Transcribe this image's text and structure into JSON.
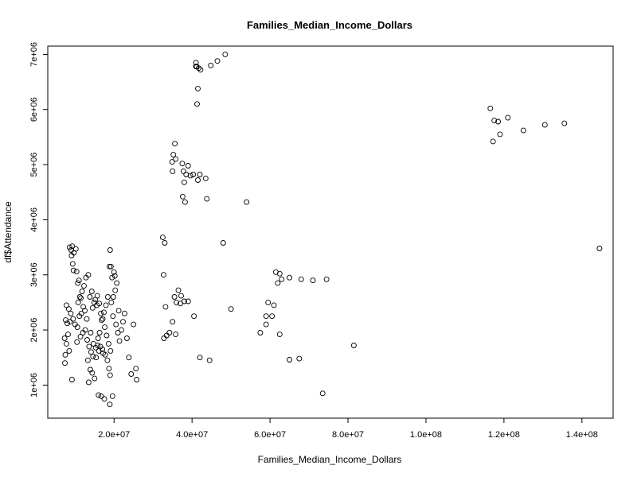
{
  "chart_data": {
    "type": "scatter",
    "title": "Families_Median_Income_Dollars",
    "xlabel": "Families_Median_Income_Dollars",
    "ylabel": "df$Attendance",
    "xlim": [
      3000000,
      148000000
    ],
    "ylim": [
      400000,
      7150000
    ],
    "xticks": [
      20000000,
      40000000,
      60000000,
      80000000,
      100000000,
      120000000,
      140000000
    ],
    "xtick_labels": [
      "2.0e+07",
      "4.0e+07",
      "6.0e+07",
      "8.0e+07",
      "1.0e+08",
      "1.2e+08",
      "1.4e+08"
    ],
    "yticks": [
      1000000,
      2000000,
      3000000,
      4000000,
      5000000,
      6000000,
      7000000
    ],
    "ytick_labels": [
      "1e+06",
      "2e+06",
      "3e+06",
      "4e+06",
      "5e+06",
      "6e+06",
      "7e+06"
    ],
    "grid": false,
    "legend": "none",
    "points": [
      [
        8600000.0,
        3500000.0
      ],
      [
        9000000.0,
        3450000.0
      ],
      [
        9300000.0,
        3520000.0
      ],
      [
        9700000.0,
        3400000.0
      ],
      [
        10200000.0,
        3470000.0
      ],
      [
        9100000.0,
        3350000.0
      ],
      [
        9400000.0,
        3200000.0
      ],
      [
        9600000.0,
        3080000.0
      ],
      [
        10400000.0,
        3060000.0
      ],
      [
        7800000.0,
        2450000.0
      ],
      [
        8400000.0,
        2380000.0
      ],
      [
        8900000.0,
        2300000.0
      ],
      [
        7600000.0,
        2180000.0
      ],
      [
        8000000.0,
        2120000.0
      ],
      [
        8700000.0,
        2150000.0
      ],
      [
        9500000.0,
        2200000.0
      ],
      [
        10000000.0,
        2100000.0
      ],
      [
        10600000.0,
        2050000.0
      ],
      [
        11100000.0,
        2250000.0
      ],
      [
        11600000.0,
        2300000.0
      ],
      [
        12100000.0,
        2420000.0
      ],
      [
        10800000.0,
        2500000.0
      ],
      [
        11200000.0,
        2600000.0
      ],
      [
        11800000.0,
        2700000.0
      ],
      [
        12300000.0,
        2800000.0
      ],
      [
        12800000.0,
        2950000.0
      ],
      [
        13400000.0,
        3000000.0
      ],
      [
        10700000.0,
        2850000.0
      ],
      [
        11000000.0,
        2900000.0
      ],
      [
        11500000.0,
        2580000.0
      ],
      [
        7300000.0,
        1850000.0
      ],
      [
        7500000.0,
        1550000.0
      ],
      [
        7400000.0,
        1400000.0
      ],
      [
        7800000.0,
        1750000.0
      ],
      [
        8200000.0,
        1920000.0
      ],
      [
        8500000.0,
        1620000.0
      ],
      [
        9200000.0,
        1100000.0
      ],
      [
        10500000.0,
        1780000.0
      ],
      [
        11400000.0,
        1880000.0
      ],
      [
        12000000.0,
        1950000.0
      ],
      [
        12600000.0,
        2000000.0
      ],
      [
        13100000.0,
        1820000.0
      ],
      [
        13600000.0,
        1700000.0
      ],
      [
        14100000.0,
        1600000.0
      ],
      [
        14600000.0,
        1520000.0
      ],
      [
        13300000.0,
        1450000.0
      ],
      [
        13900000.0,
        1280000.0
      ],
      [
        14400000.0,
        1220000.0
      ],
      [
        13500000.0,
        1050000.0
      ],
      [
        15000000.0,
        1120000.0
      ],
      [
        15400000.0,
        1500000.0
      ],
      [
        15800000.0,
        1720000.0
      ],
      [
        16300000.0,
        1950000.0
      ],
      [
        16800000.0,
        2180000.0
      ],
      [
        17400000.0,
        2320000.0
      ],
      [
        17900000.0,
        2450000.0
      ],
      [
        18400000.0,
        2600000.0
      ],
      [
        14500000.0,
        2400000.0
      ],
      [
        14900000.0,
        2500000.0
      ],
      [
        15200000.0,
        2550000.0
      ],
      [
        15700000.0,
        2620000.0
      ],
      [
        16200000.0,
        2480000.0
      ],
      [
        16600000.0,
        2300000.0
      ],
      [
        17100000.0,
        2200000.0
      ],
      [
        17600000.0,
        2050000.0
      ],
      [
        18100000.0,
        1900000.0
      ],
      [
        18600000.0,
        1750000.0
      ],
      [
        19100000.0,
        1620000.0
      ],
      [
        16000000.0,
        820000.0
      ],
      [
        16700000.0,
        800000.0
      ],
      [
        17500000.0,
        750000.0
      ],
      [
        18900000.0,
        650000.0
      ],
      [
        19600000.0,
        800000.0
      ],
      [
        19000000.0,
        1180000.0
      ],
      [
        18700000.0,
        1300000.0
      ],
      [
        17200000.0,
        1580000.0
      ],
      [
        16500000.0,
        1700000.0
      ],
      [
        15900000.0,
        1850000.0
      ],
      [
        19300000.0,
        2500000.0
      ],
      [
        19800000.0,
        2600000.0
      ],
      [
        20300000.0,
        2720000.0
      ],
      [
        20700000.0,
        2850000.0
      ],
      [
        19500000.0,
        2950000.0
      ],
      [
        20000000.0,
        3050000.0
      ],
      [
        19200000.0,
        3150000.0
      ],
      [
        18800000.0,
        3150000.0
      ],
      [
        19000000.0,
        3450000.0
      ],
      [
        20200000.0,
        2980000.0
      ],
      [
        19700000.0,
        2250000.0
      ],
      [
        20500000.0,
        2100000.0
      ],
      [
        21000000.0,
        1950000.0
      ],
      [
        21400000.0,
        1800000.0
      ],
      [
        21900000.0,
        2000000.0
      ],
      [
        22300000.0,
        2150000.0
      ],
      [
        22700000.0,
        2300000.0
      ],
      [
        23300000.0,
        1850000.0
      ],
      [
        23800000.0,
        1500000.0
      ],
      [
        24400000.0,
        1200000.0
      ],
      [
        25000000.0,
        2100000.0
      ],
      [
        25600000.0,
        1300000.0
      ],
      [
        25800000.0,
        1100000.0
      ],
      [
        21200000.0,
        2350000.0
      ],
      [
        13000000.0,
        2200000.0
      ],
      [
        12500000.0,
        2350000.0
      ],
      [
        14000000.0,
        1950000.0
      ],
      [
        14700000.0,
        1750000.0
      ],
      [
        15300000.0,
        1680000.0
      ],
      [
        16100000.0,
        1620000.0
      ],
      [
        17000000.0,
        1650000.0
      ],
      [
        17700000.0,
        1550000.0
      ],
      [
        18300000.0,
        1450000.0
      ],
      [
        13800000.0,
        2600000.0
      ],
      [
        14300000.0,
        2700000.0
      ],
      [
        15600000.0,
        2450000.0
      ],
      [
        32500000.0,
        3680000.0
      ],
      [
        33000000.0,
        3580000.0
      ],
      [
        32700000.0,
        3000000.0
      ],
      [
        33200000.0,
        2420000.0
      ],
      [
        32800000.0,
        1850000.0
      ],
      [
        33500000.0,
        1900000.0
      ],
      [
        34200000.0,
        1950000.0
      ],
      [
        35000000.0,
        2150000.0
      ],
      [
        35500000.0,
        2600000.0
      ],
      [
        36000000.0,
        2500000.0
      ],
      [
        36500000.0,
        2720000.0
      ],
      [
        37000000.0,
        2480000.0
      ],
      [
        38000000.0,
        2520000.0
      ],
      [
        39000000.0,
        2520000.0
      ],
      [
        40500000.0,
        2250000.0
      ],
      [
        35800000.0,
        1920000.0
      ],
      [
        37200000.0,
        2620000.0
      ],
      [
        42000000.0,
        1500000.0
      ],
      [
        44500000.0,
        1450000.0
      ],
      [
        48000000.0,
        3580000.0
      ],
      [
        50000000.0,
        2380000.0
      ],
      [
        35600000.0,
        5380000.0
      ],
      [
        35200000.0,
        5180000.0
      ],
      [
        35800000.0,
        5100000.0
      ],
      [
        34900000.0,
        5050000.0
      ],
      [
        35000000.0,
        4880000.0
      ],
      [
        37500000.0,
        5020000.0
      ],
      [
        37800000.0,
        4880000.0
      ],
      [
        38500000.0,
        4820000.0
      ],
      [
        39000000.0,
        4980000.0
      ],
      [
        39600000.0,
        4800000.0
      ],
      [
        40300000.0,
        4820000.0
      ],
      [
        41500000.0,
        4720000.0
      ],
      [
        42000000.0,
        4820000.0
      ],
      [
        43500000.0,
        4750000.0
      ],
      [
        38000000.0,
        4680000.0
      ],
      [
        37600000.0,
        4420000.0
      ],
      [
        38200000.0,
        4320000.0
      ],
      [
        43800000.0,
        4380000.0
      ],
      [
        54000000.0,
        4320000.0
      ],
      [
        41000000.0,
        6850000.0
      ],
      [
        41200000.0,
        6780000.0
      ],
      [
        41700000.0,
        6750000.0
      ],
      [
        42200000.0,
        6720000.0
      ],
      [
        44800000.0,
        6800000.0
      ],
      [
        46500000.0,
        6880000.0
      ],
      [
        48500000.0,
        7000000.0
      ],
      [
        41500000.0,
        6380000.0
      ],
      [
        41300000.0,
        6100000.0
      ],
      [
        41000000.0,
        6780000.0
      ],
      [
        61500000.0,
        3050000.0
      ],
      [
        62500000.0,
        3020000.0
      ],
      [
        63000000.0,
        2920000.0
      ],
      [
        62000000.0,
        2850000.0
      ],
      [
        65000000.0,
        2950000.0
      ],
      [
        68000000.0,
        2920000.0
      ],
      [
        71000000.0,
        2900000.0
      ],
      [
        74500000.0,
        2920000.0
      ],
      [
        59500000.0,
        2500000.0
      ],
      [
        61000000.0,
        2450000.0
      ],
      [
        59000000.0,
        2250000.0
      ],
      [
        60500000.0,
        2250000.0
      ],
      [
        59000000.0,
        2100000.0
      ],
      [
        57500000.0,
        1950000.0
      ],
      [
        62500000.0,
        1920000.0
      ],
      [
        65000000.0,
        1460000.0
      ],
      [
        67500000.0,
        1480000.0
      ],
      [
        73500000.0,
        850000.0
      ],
      [
        81500000.0,
        1720000.0
      ],
      [
        116500000.0,
        6020000.0
      ],
      [
        117500000.0,
        5800000.0
      ],
      [
        118500000.0,
        5780000.0
      ],
      [
        121000000.0,
        5850000.0
      ],
      [
        119000000.0,
        5550000.0
      ],
      [
        117200000.0,
        5420000.0
      ],
      [
        125000000.0,
        5620000.0
      ],
      [
        130500000.0,
        5720000.0
      ],
      [
        135500000.0,
        5750000.0
      ],
      [
        144500000.0,
        3480000.0
      ]
    ]
  }
}
